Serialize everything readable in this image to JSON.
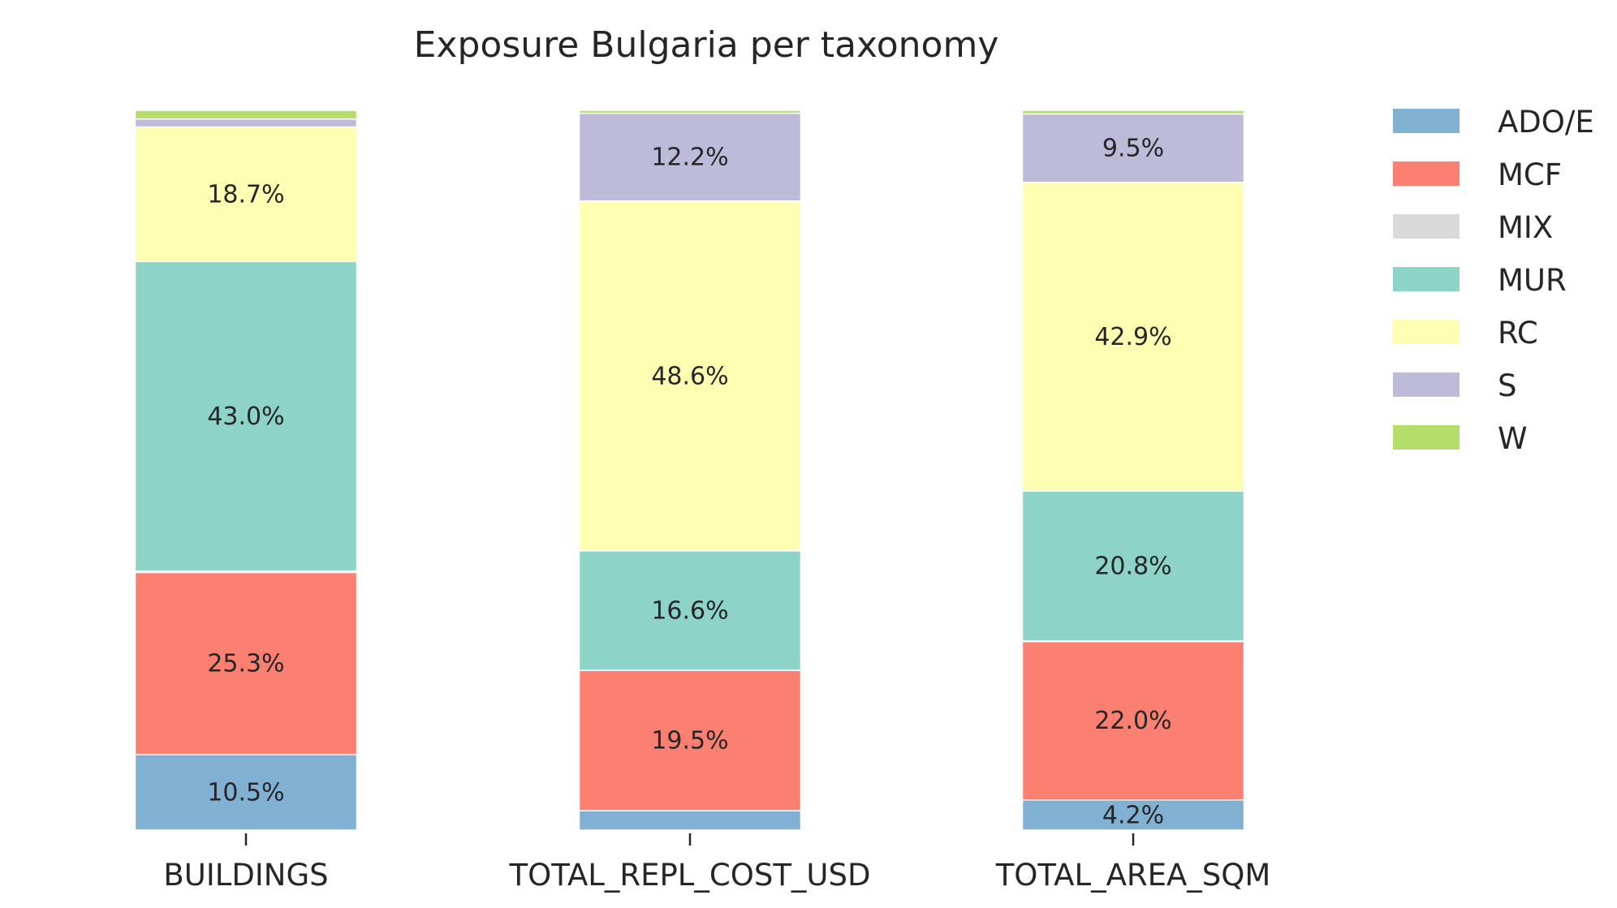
{
  "chart_data": {
    "type": "bar",
    "stacked": true,
    "normalized": true,
    "title": "Exposure Bulgaria per taxonomy",
    "xlabel": "",
    "ylabel": "",
    "categories": [
      "BUILDINGS",
      "TOTAL_REPL_COST_USD",
      "TOTAL_AREA_SQM"
    ],
    "ylim": [
      0,
      100
    ],
    "grid": false,
    "legend_position": "right",
    "series": [
      {
        "name": "ADO/E",
        "color": "#80b1d3",
        "values": [
          10.5,
          2.7,
          4.2
        ],
        "labels": [
          "10.5%",
          "",
          "4.2%"
        ]
      },
      {
        "name": "MCF",
        "color": "#fb8072",
        "values": [
          25.3,
          19.5,
          22.0
        ],
        "labels": [
          "25.3%",
          "19.5%",
          "22.0%"
        ]
      },
      {
        "name": "MIX",
        "color": "#d9d9d9",
        "values": [
          0.2,
          0.0,
          0.1
        ],
        "labels": [
          "",
          "",
          ""
        ]
      },
      {
        "name": "MUR",
        "color": "#8dd3c7",
        "values": [
          43.0,
          16.6,
          20.8
        ],
        "labels": [
          "43.0%",
          "16.6%",
          "20.8%"
        ]
      },
      {
        "name": "RC",
        "color": "#ffffb3",
        "values": [
          18.7,
          48.6,
          42.9
        ],
        "labels": [
          "18.7%",
          "48.6%",
          "42.9%"
        ]
      },
      {
        "name": "S",
        "color": "#bebada",
        "values": [
          1.1,
          12.2,
          9.5
        ],
        "labels": [
          "",
          "12.2%",
          "9.5%"
        ]
      },
      {
        "name": "W",
        "color": "#b3de69",
        "values": [
          1.2,
          0.4,
          0.5
        ],
        "labels": [
          "",
          "",
          ""
        ]
      }
    ]
  }
}
